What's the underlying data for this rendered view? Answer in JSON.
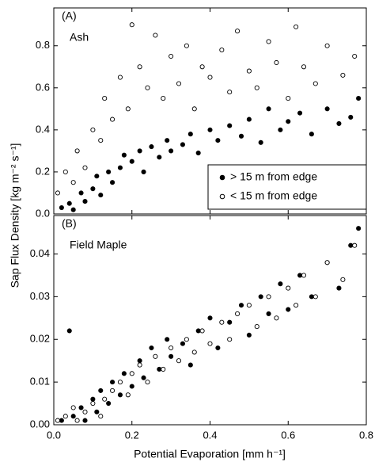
{
  "chart_data": [
    {
      "type": "scatter",
      "panel_label": "(A)",
      "title": "Ash",
      "y_label": "Sap Flux Density [kg m⁻² s⁻¹]",
      "xlim": [
        0,
        0.8
      ],
      "ylim": [
        0,
        0.98
      ],
      "yticks": [
        {
          "value": 0,
          "label": "0.0"
        },
        0.2,
        0.4,
        0.6,
        0.8
      ],
      "legend": "lower right",
      "series": [
        {
          "name": "> 15 m from edge",
          "color": "#000000",
          "marker": "filled",
          "x": [
            0.02,
            0.04,
            0.05,
            0.07,
            0.08,
            0.1,
            0.11,
            0.12,
            0.14,
            0.15,
            0.17,
            0.18,
            0.2,
            0.22,
            0.23,
            0.25,
            0.27,
            0.29,
            0.3,
            0.33,
            0.35,
            0.37,
            0.4,
            0.42,
            0.45,
            0.48,
            0.5,
            0.53,
            0.55,
            0.58,
            0.6,
            0.63,
            0.66,
            0.7,
            0.73,
            0.76,
            0.78
          ],
          "values": [
            0.03,
            0.05,
            0.02,
            0.1,
            0.06,
            0.12,
            0.18,
            0.09,
            0.2,
            0.15,
            0.22,
            0.28,
            0.25,
            0.3,
            0.2,
            0.32,
            0.27,
            0.35,
            0.3,
            0.33,
            0.38,
            0.29,
            0.4,
            0.35,
            0.42,
            0.37,
            0.45,
            0.34,
            0.5,
            0.4,
            0.44,
            0.48,
            0.38,
            0.5,
            0.43,
            0.46,
            0.55
          ]
        },
        {
          "name": "< 15 m from edge",
          "color": "#000000",
          "marker": "open",
          "x": [
            0.01,
            0.03,
            0.05,
            0.06,
            0.08,
            0.1,
            0.12,
            0.13,
            0.15,
            0.17,
            0.19,
            0.2,
            0.22,
            0.24,
            0.26,
            0.28,
            0.3,
            0.32,
            0.34,
            0.36,
            0.38,
            0.4,
            0.43,
            0.45,
            0.47,
            0.5,
            0.52,
            0.55,
            0.57,
            0.6,
            0.62,
            0.64,
            0.67,
            0.7,
            0.74,
            0.77
          ],
          "values": [
            0.1,
            0.2,
            0.15,
            0.3,
            0.22,
            0.4,
            0.35,
            0.55,
            0.45,
            0.65,
            0.5,
            0.9,
            0.7,
            0.6,
            0.85,
            0.55,
            0.75,
            0.62,
            0.8,
            0.5,
            0.7,
            0.65,
            0.78,
            0.58,
            0.87,
            0.68,
            0.6,
            0.82,
            0.72,
            0.55,
            0.89,
            0.7,
            0.62,
            0.8,
            0.66,
            0.75
          ]
        }
      ]
    },
    {
      "type": "scatter",
      "panel_label": "(B)",
      "title": "Field Maple",
      "x_label": "Potential Evaporation [mm h⁻¹]",
      "xlim": [
        0,
        0.8
      ],
      "ylim": [
        0,
        0.049
      ],
      "xticks": [
        {
          "value": 0,
          "label": "0.0"
        },
        0.2,
        0.4,
        0.6,
        0.8
      ],
      "yticks": [
        {
          "value": 0,
          "label": "0.00"
        },
        0.01,
        0.02,
        0.03,
        0.04
      ],
      "series": [
        {
          "color": "#000000",
          "marker": "filled",
          "x": [
            0.02,
            0.04,
            0.05,
            0.07,
            0.08,
            0.1,
            0.11,
            0.12,
            0.14,
            0.15,
            0.17,
            0.18,
            0.2,
            0.22,
            0.23,
            0.25,
            0.27,
            0.29,
            0.3,
            0.33,
            0.35,
            0.37,
            0.4,
            0.42,
            0.45,
            0.48,
            0.5,
            0.53,
            0.55,
            0.58,
            0.6,
            0.63,
            0.66,
            0.7,
            0.73,
            0.76,
            0.78
          ],
          "values": [
            0.001,
            0.022,
            0.002,
            0.004,
            0.001,
            0.006,
            0.003,
            0.008,
            0.005,
            0.01,
            0.007,
            0.012,
            0.009,
            0.015,
            0.011,
            0.018,
            0.013,
            0.02,
            0.016,
            0.019,
            0.014,
            0.022,
            0.025,
            0.018,
            0.024,
            0.028,
            0.021,
            0.03,
            0.026,
            0.033,
            0.027,
            0.035,
            0.03,
            0.038,
            0.032,
            0.042,
            0.046
          ]
        },
        {
          "color": "#000000",
          "marker": "open",
          "x": [
            0.01,
            0.03,
            0.05,
            0.06,
            0.08,
            0.1,
            0.12,
            0.13,
            0.15,
            0.17,
            0.19,
            0.2,
            0.22,
            0.24,
            0.26,
            0.28,
            0.3,
            0.32,
            0.34,
            0.36,
            0.38,
            0.4,
            0.43,
            0.45,
            0.47,
            0.5,
            0.52,
            0.55,
            0.57,
            0.6,
            0.62,
            0.64,
            0.67,
            0.7,
            0.74,
            0.77
          ],
          "values": [
            0.001,
            0.002,
            0.004,
            0.001,
            0.003,
            0.005,
            0.002,
            0.006,
            0.008,
            0.01,
            0.007,
            0.012,
            0.014,
            0.01,
            0.016,
            0.013,
            0.018,
            0.015,
            0.02,
            0.017,
            0.022,
            0.019,
            0.024,
            0.02,
            0.026,
            0.028,
            0.023,
            0.03,
            0.025,
            0.032,
            0.028,
            0.035,
            0.03,
            0.038,
            0.034,
            0.042
          ]
        }
      ]
    }
  ]
}
